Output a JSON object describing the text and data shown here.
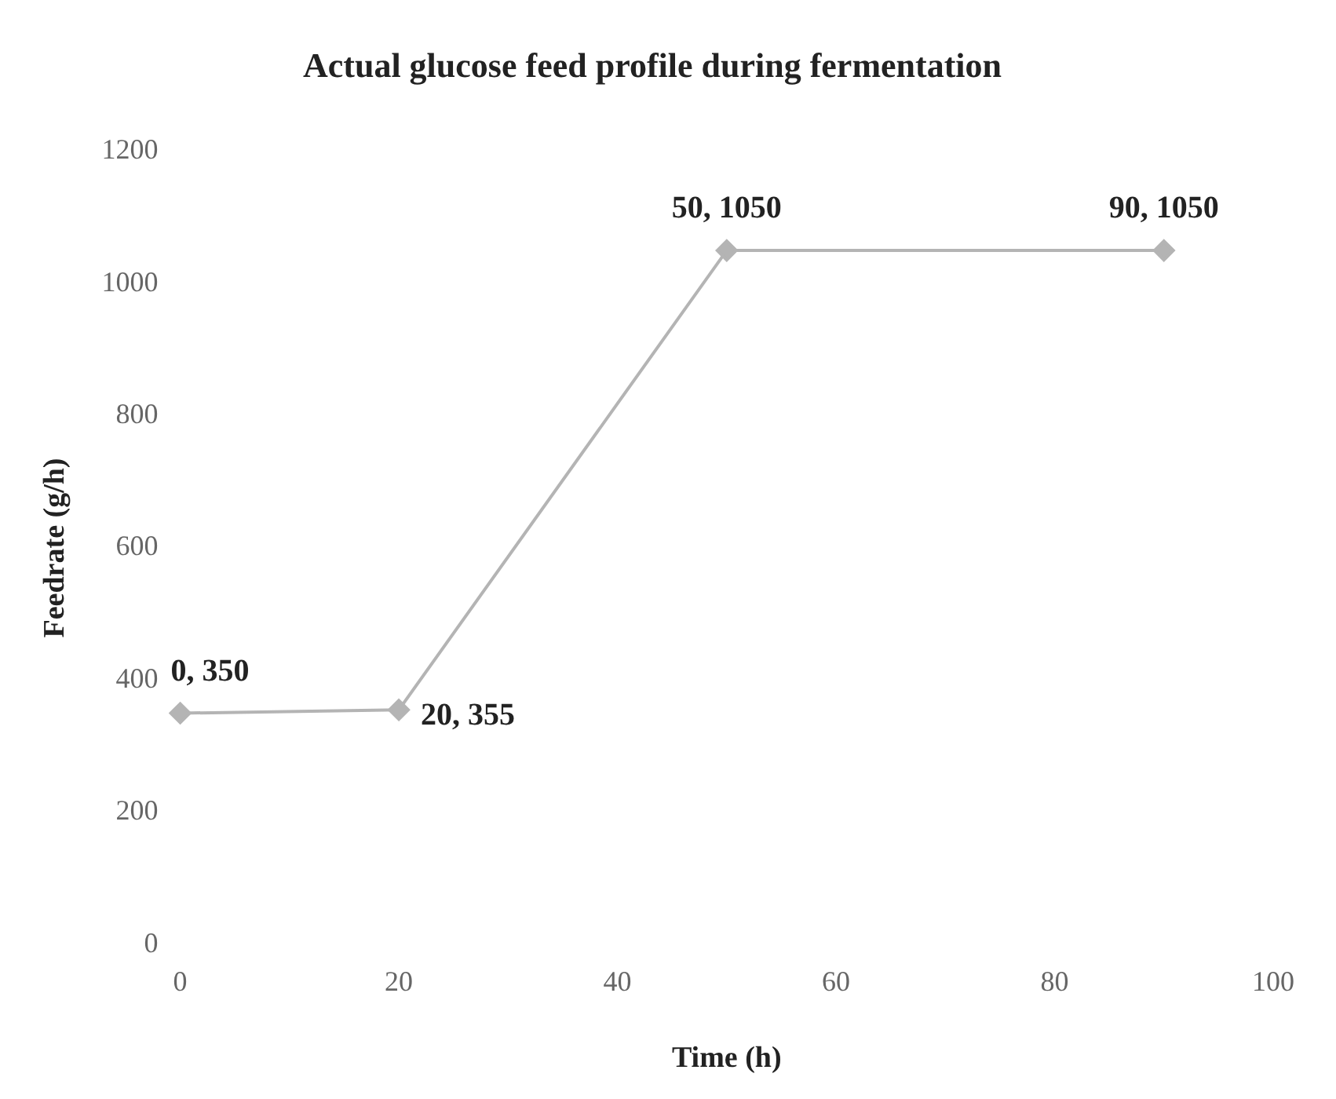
{
  "chart_data": {
    "type": "line",
    "title": "Actual glucose feed profile during fermentation",
    "xlabel": "Time (h)",
    "ylabel": "Feedrate (g/h)",
    "x": [
      0,
      20,
      50,
      90
    ],
    "series": [
      {
        "color": "#b4b4b4",
        "values": [
          350,
          355,
          1050,
          1050
        ],
        "value_labels": [
          "0, 350",
          "20, 355",
          "50, 1050",
          "90, 1050"
        ]
      }
    ],
    "xlim": [
      0,
      100
    ],
    "xticks": [
      0,
      20,
      40,
      60,
      80,
      100
    ],
    "ylim": [
      0,
      1200
    ],
    "yticks": [
      0,
      200,
      400,
      600,
      800,
      1000,
      1200
    ],
    "grid": false,
    "legend": false,
    "marker": "diamond",
    "line_style": "solid"
  }
}
